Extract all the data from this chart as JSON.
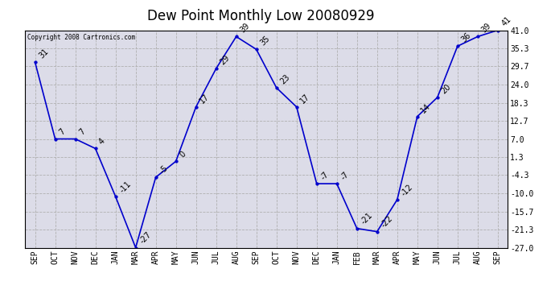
{
  "title": "Dew Point Monthly Low 20080929",
  "copyright": "Copyright 2008 Cartronics.com",
  "months": [
    "SEP",
    "OCT",
    "NOV",
    "DEC",
    "JAN",
    "MAR",
    "APR",
    "MAY",
    "JUN",
    "JUL",
    "AUG",
    "SEP",
    "OCT",
    "NOV",
    "DEC",
    "JAN",
    "FEB",
    "MAR",
    "APR",
    "MAY",
    "JUN",
    "JUL",
    "AUG",
    "SEP"
  ],
  "values": [
    31,
    7,
    7,
    4,
    -11,
    -27,
    -5,
    0,
    17,
    29,
    39,
    35,
    23,
    17,
    -7,
    -7,
    -21,
    -22,
    -12,
    14,
    20,
    36,
    39,
    41
  ],
  "line_color": "#0000cc",
  "marker_color": "#0000cc",
  "bg_color": "#dcdce8",
  "grid_color": "#b0b0b0",
  "yticks": [
    41.0,
    35.3,
    29.7,
    24.0,
    18.3,
    12.7,
    7.0,
    1.3,
    -4.3,
    -10.0,
    -15.7,
    -21.3,
    -27.0
  ],
  "ylim": [
    -27.0,
    41.0
  ],
  "title_fontsize": 12,
  "tick_fontsize": 7,
  "annotation_fontsize": 7
}
